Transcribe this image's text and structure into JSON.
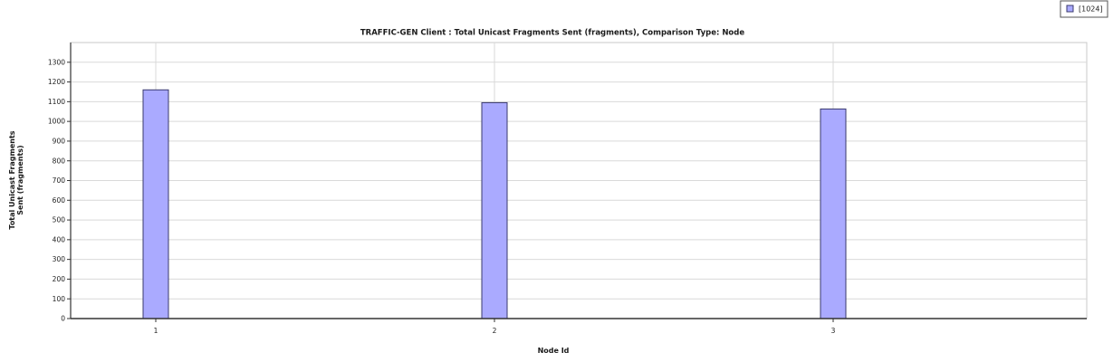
{
  "chart_data": {
    "type": "bar",
    "title": "TRAFFIC-GEN Client :  Total Unicast Fragments Sent (fragments), Comparison Type: Node",
    "xlabel": "Node Id",
    "ylabel_lines": [
      "Total Unicast Fragments",
      "Sent (fragments)"
    ],
    "categories": [
      "1",
      "2",
      "3"
    ],
    "series": [
      {
        "name": "[1024]",
        "values": [
          1160,
          1095,
          1063
        ]
      }
    ],
    "ylim": [
      0,
      1400
    ],
    "yticks": [
      0,
      100,
      200,
      300,
      400,
      500,
      600,
      700,
      800,
      900,
      1000,
      1100,
      1200,
      1300
    ],
    "grid": true,
    "legend_position": "top-right",
    "colors": {
      "bar_fill": "#aaaaff",
      "bar_stroke": "#3a3a6e",
      "grid": "#d9d9d9",
      "axis": "#333333"
    }
  }
}
